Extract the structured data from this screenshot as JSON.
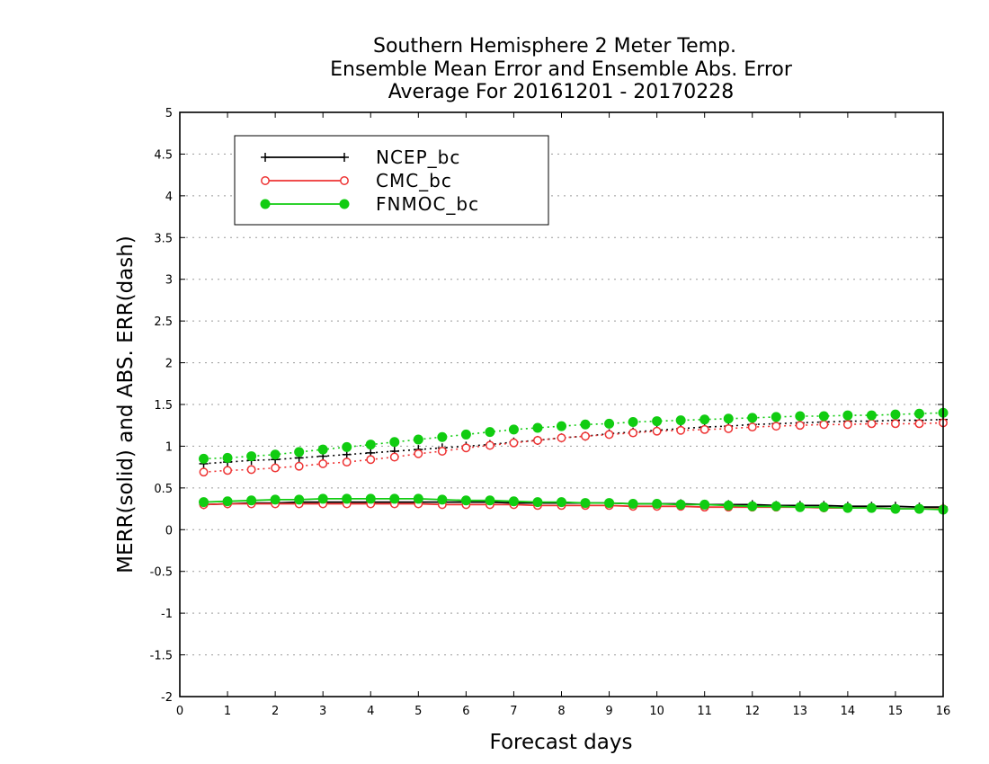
{
  "chart_data": {
    "type": "line",
    "title": [
      "Southern Hemisphere 2 Meter Temp.",
      "Ensemble Mean Error and Ensemble Abs. Error",
      "Average For 20161201 - 20170228"
    ],
    "xlabel": "Forecast days",
    "ylabel": "MERR(solid) and ABS. ERR(dash)",
    "xlim": [
      0,
      16
    ],
    "ylim": [
      -2,
      5
    ],
    "xticks": [
      0,
      1,
      2,
      3,
      4,
      5,
      6,
      7,
      8,
      9,
      10,
      11,
      12,
      13,
      14,
      15,
      16
    ],
    "yticks": [
      -2,
      -1.5,
      -1,
      -0.5,
      0,
      0.5,
      1,
      1.5,
      2,
      2.5,
      3,
      3.5,
      4,
      4.5,
      5
    ],
    "ytick_labels": [
      "-2",
      "-1.5",
      "-1",
      "-0.5",
      "0",
      "0.5",
      "1",
      "1.5",
      "2",
      "2.5",
      "3",
      "3.5",
      "4",
      "4.5",
      "5"
    ],
    "grid": "horizontal dotted",
    "legend_position": "top-left",
    "x": [
      0.5,
      1,
      1.5,
      2,
      2.5,
      3,
      3.5,
      4,
      4.5,
      5,
      5.5,
      6,
      6.5,
      7,
      7.5,
      8,
      8.5,
      9,
      9.5,
      10,
      10.5,
      11,
      11.5,
      12,
      12.5,
      13,
      13.5,
      14,
      14.5,
      15,
      15.5,
      16
    ],
    "series": [
      {
        "name": "NCEP_bc",
        "color": "#000000",
        "marker": "plus",
        "merr": [
          0.3,
          0.31,
          0.32,
          0.32,
          0.33,
          0.33,
          0.33,
          0.33,
          0.33,
          0.33,
          0.33,
          0.33,
          0.33,
          0.32,
          0.32,
          0.32,
          0.32,
          0.32,
          0.31,
          0.31,
          0.31,
          0.3,
          0.3,
          0.3,
          0.29,
          0.29,
          0.29,
          0.28,
          0.28,
          0.28,
          0.27,
          0.27
        ],
        "abs_err": [
          0.79,
          0.81,
          0.83,
          0.84,
          0.86,
          0.88,
          0.9,
          0.92,
          0.94,
          0.96,
          0.98,
          1.0,
          1.02,
          1.05,
          1.07,
          1.1,
          1.12,
          1.15,
          1.17,
          1.19,
          1.21,
          1.23,
          1.24,
          1.26,
          1.27,
          1.28,
          1.29,
          1.3,
          1.3,
          1.31,
          1.31,
          1.32
        ]
      },
      {
        "name": "CMC_bc",
        "color": "#ee3333",
        "marker": "open-circle",
        "merr": [
          0.3,
          0.31,
          0.31,
          0.31,
          0.31,
          0.31,
          0.31,
          0.31,
          0.31,
          0.31,
          0.3,
          0.3,
          0.3,
          0.3,
          0.29,
          0.29,
          0.29,
          0.29,
          0.28,
          0.28,
          0.28,
          0.27,
          0.27,
          0.27,
          0.27,
          0.27,
          0.26,
          0.26,
          0.26,
          0.25,
          0.25,
          0.25
        ],
        "abs_err": [
          0.69,
          0.71,
          0.72,
          0.74,
          0.76,
          0.79,
          0.81,
          0.84,
          0.87,
          0.91,
          0.94,
          0.98,
          1.01,
          1.04,
          1.07,
          1.1,
          1.12,
          1.14,
          1.16,
          1.18,
          1.19,
          1.2,
          1.21,
          1.23,
          1.24,
          1.25,
          1.26,
          1.26,
          1.27,
          1.27,
          1.27,
          1.28
        ]
      },
      {
        "name": "FNMOC_bc",
        "color": "#11cc11",
        "marker": "filled-circle",
        "merr": [
          0.33,
          0.34,
          0.35,
          0.36,
          0.36,
          0.37,
          0.37,
          0.37,
          0.37,
          0.37,
          0.36,
          0.35,
          0.35,
          0.34,
          0.33,
          0.33,
          0.32,
          0.32,
          0.31,
          0.31,
          0.3,
          0.3,
          0.29,
          0.28,
          0.28,
          0.27,
          0.27,
          0.26,
          0.26,
          0.25,
          0.25,
          0.24
        ],
        "abs_err": [
          0.85,
          0.86,
          0.88,
          0.9,
          0.93,
          0.96,
          0.99,
          1.02,
          1.05,
          1.08,
          1.11,
          1.14,
          1.17,
          1.2,
          1.22,
          1.24,
          1.26,
          1.27,
          1.29,
          1.3,
          1.31,
          1.32,
          1.33,
          1.34,
          1.35,
          1.36,
          1.36,
          1.37,
          1.37,
          1.38,
          1.39,
          1.4
        ]
      }
    ]
  }
}
